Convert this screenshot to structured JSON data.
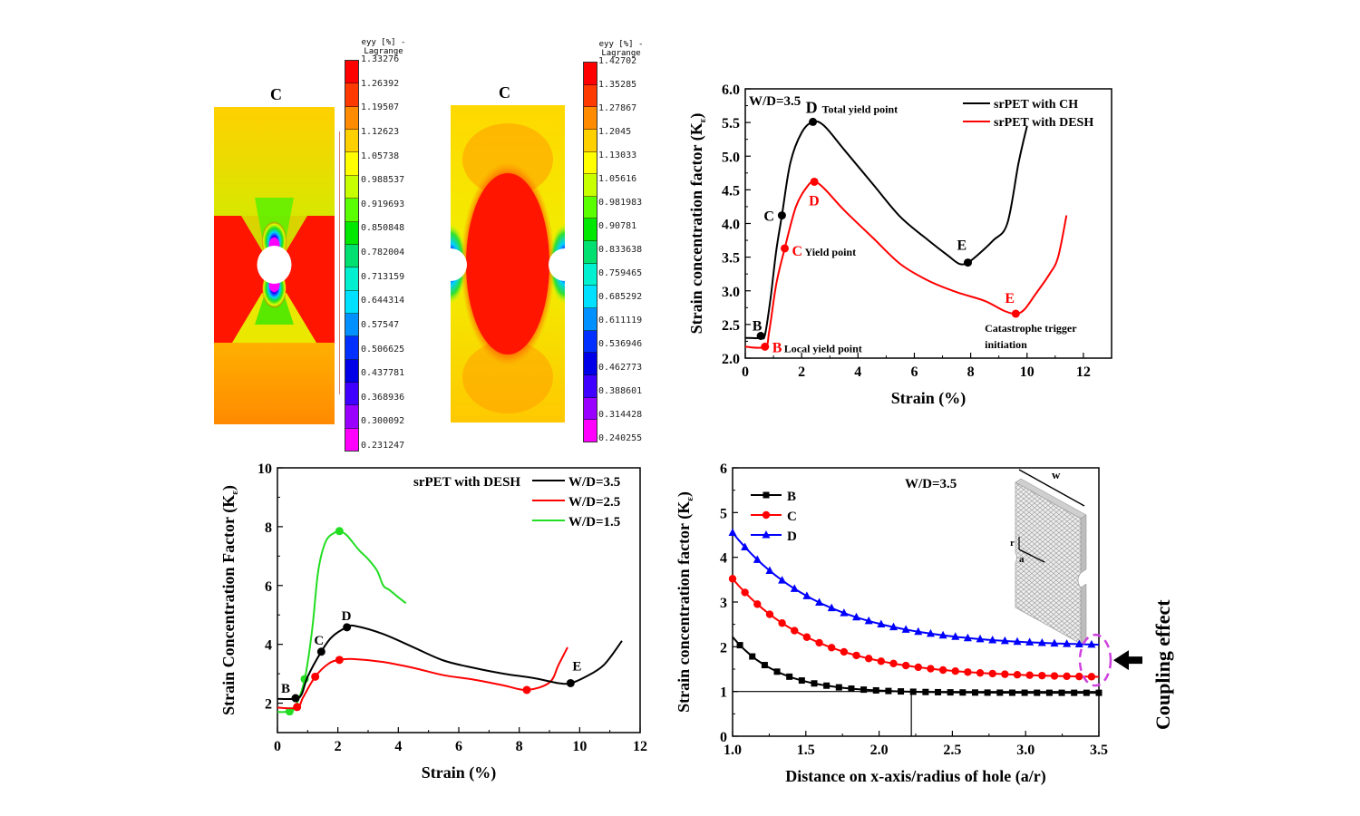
{
  "figure": {
    "contour_maps": [
      {
        "label": "C",
        "colorbar_title_line1": "eyy [%] -",
        "colorbar_title_line2": "Lagrange",
        "colorbar_ticks": [
          "1.33276",
          "1.26392",
          "1.19507",
          "1.12623",
          "1.05738",
          "0.988537",
          "0.919693",
          "0.850848",
          "0.782004",
          "0.713159",
          "0.644314",
          "0.57547",
          "0.506625",
          "0.437781",
          "0.368936",
          "0.300092",
          "0.231247"
        ]
      },
      {
        "label": "C",
        "colorbar_title_line1": "eyy [%] -",
        "colorbar_title_line2": "Lagrange",
        "colorbar_ticks": [
          "1.42702",
          "1.35285",
          "1.27867",
          "1.2045",
          "1.13033",
          "1.05616",
          "0.981983",
          "0.90781",
          "0.833638",
          "0.759465",
          "0.685292",
          "0.611119",
          "0.536946",
          "0.462773",
          "0.388601",
          "0.314428",
          "0.240255"
        ]
      }
    ],
    "colorbar_colors": [
      "#ff0000",
      "#ff3a00",
      "#ff8c00",
      "#ffd000",
      "#ffff00",
      "#c8ff00",
      "#5aff00",
      "#00e800",
      "#00e070",
      "#00f0d0",
      "#00e0ff",
      "#0090ff",
      "#0030ff",
      "#0000e8",
      "#4000ff",
      "#9a00ff",
      "#ff00ff"
    ],
    "coupling_label": "Coupling effect"
  },
  "chart_data": [
    {
      "type": "line",
      "title": "",
      "annotation_wd": "W/D=3.5",
      "xlabel": "Strain (%)",
      "ylabel": "Strain concentration factor (K",
      "ylabel_sub": "ε",
      "xlim": [
        0,
        13
      ],
      "ylim": [
        2.0,
        6.0
      ],
      "xticks": [
        "0",
        "2",
        "4",
        "6",
        "8",
        "10",
        "12"
      ],
      "xtick_values": [
        0,
        2,
        4,
        6,
        8,
        10,
        12
      ],
      "yticks": [
        "2.0",
        "2.5",
        "3.0",
        "3.5",
        "4.0",
        "4.5",
        "5.0",
        "5.5",
        "6.0"
      ],
      "ytick_values": [
        2.0,
        2.5,
        3.0,
        3.5,
        4.0,
        4.5,
        5.0,
        5.5,
        6.0
      ],
      "legend_position": "top-right",
      "series": [
        {
          "name": "srPET with CH",
          "color": "#000000",
          "x": [
            0,
            0.55,
            0.7,
            0.9,
            1.1,
            1.3,
            1.6,
            2.0,
            2.4,
            2.8,
            3.5,
            4.5,
            5.5,
            6.5,
            7.2,
            7.6,
            7.9,
            8.3,
            8.8,
            9.3,
            9.7,
            10.0
          ],
          "y": [
            2.3,
            2.3,
            2.35,
            2.9,
            3.6,
            4.12,
            4.9,
            5.35,
            5.51,
            5.45,
            5.1,
            4.6,
            4.1,
            3.75,
            3.52,
            3.4,
            3.42,
            3.55,
            3.75,
            4.0,
            4.9,
            5.45
          ],
          "points": [
            {
              "label": "B",
              "x": 0.55,
              "y": 2.33,
              "note": ""
            },
            {
              "label": "C",
              "x": 1.3,
              "y": 4.12,
              "note": ""
            },
            {
              "label": "D",
              "x": 2.4,
              "y": 5.51,
              "note": "Total yield point"
            },
            {
              "label": "E",
              "x": 7.9,
              "y": 3.42,
              "note": ""
            }
          ]
        },
        {
          "name": "srPET with DESH",
          "color": "#ff0000",
          "x": [
            0,
            0.7,
            0.85,
            1.1,
            1.4,
            1.8,
            2.2,
            2.45,
            2.8,
            3.5,
            4.5,
            5.5,
            6.5,
            7.5,
            8.5,
            9.2,
            9.6,
            9.9,
            10.3,
            10.8,
            11.1,
            11.4
          ],
          "y": [
            2.17,
            2.17,
            2.4,
            3.1,
            3.63,
            4.25,
            4.55,
            4.62,
            4.52,
            4.2,
            3.8,
            3.4,
            3.15,
            2.98,
            2.85,
            2.7,
            2.66,
            2.72,
            2.95,
            3.25,
            3.5,
            4.12
          ],
          "points": [
            {
              "label": "B",
              "x": 0.7,
              "y": 2.17,
              "note": "Local yield point"
            },
            {
              "label": "C",
              "x": 1.4,
              "y": 3.63,
              "note": "Yield point"
            },
            {
              "label": "D",
              "x": 2.45,
              "y": 4.62,
              "note": ""
            },
            {
              "label": "E",
              "x": 9.6,
              "y": 2.66,
              "note": "Catastrophe trigger initiation"
            }
          ]
        }
      ]
    },
    {
      "type": "line",
      "title": "srPET with DESH",
      "xlabel": "Strain (%)",
      "ylabel": "Strain Concentration Factor (K",
      "ylabel_sub": "ε",
      "xlim": [
        0,
        12
      ],
      "ylim": [
        1,
        10
      ],
      "xticks": [
        "0",
        "2",
        "4",
        "6",
        "8",
        "10",
        "12"
      ],
      "xtick_values": [
        0,
        2,
        4,
        6,
        8,
        10,
        12
      ],
      "yticks": [
        "2",
        "4",
        "6",
        "8",
        "10"
      ],
      "ytick_values": [
        2,
        4,
        6,
        8,
        10
      ],
      "legend_position": "top-right",
      "series": [
        {
          "name": "W/D=3.5",
          "color": "#000000",
          "x": [
            0,
            0.6,
            0.8,
            1.0,
            1.45,
            1.8,
            2.3,
            2.6,
            3.5,
            4.5,
            5.5,
            6.5,
            7.5,
            8.5,
            9.3,
            9.7,
            10.2,
            10.8,
            11.4
          ],
          "y": [
            2.15,
            2.15,
            2.3,
            2.9,
            3.75,
            4.25,
            4.58,
            4.62,
            4.35,
            3.9,
            3.45,
            3.2,
            3.0,
            2.85,
            2.68,
            2.68,
            2.9,
            3.3,
            4.12
          ],
          "points": [
            {
              "label": "B",
              "x": 0.6,
              "y": 2.17
            },
            {
              "label": "C",
              "x": 1.45,
              "y": 3.75
            },
            {
              "label": "D",
              "x": 2.3,
              "y": 4.58
            },
            {
              "label": "E",
              "x": 9.7,
              "y": 2.68
            }
          ]
        },
        {
          "name": "W/D=2.5",
          "color": "#ff0000",
          "x": [
            0,
            0.65,
            0.85,
            1.25,
            1.7,
            2.05,
            2.5,
            3.5,
            4.5,
            5.5,
            6.5,
            7.5,
            8.25,
            9.0,
            9.3,
            9.6
          ],
          "y": [
            1.85,
            1.85,
            2.2,
            2.9,
            3.35,
            3.47,
            3.5,
            3.4,
            3.2,
            2.95,
            2.8,
            2.6,
            2.45,
            2.7,
            3.3,
            3.9
          ],
          "points": [
            {
              "label": "",
              "x": 0.65,
              "y": 1.87
            },
            {
              "label": "",
              "x": 1.25,
              "y": 2.9
            },
            {
              "label": "",
              "x": 2.05,
              "y": 3.47
            },
            {
              "label": "",
              "x": 8.25,
              "y": 2.45
            }
          ]
        },
        {
          "name": "W/D=1.5",
          "color": "#22dd22",
          "x": [
            0,
            0.4,
            0.6,
            0.9,
            1.15,
            1.35,
            1.6,
            1.9,
            2.05,
            2.3,
            2.7,
            3.0,
            3.3,
            3.5,
            3.7,
            4.0,
            4.25
          ],
          "y": [
            1.7,
            1.72,
            1.9,
            2.8,
            4.5,
            6.5,
            7.5,
            7.8,
            7.85,
            7.7,
            7.2,
            6.9,
            6.5,
            6.0,
            5.85,
            5.6,
            5.4
          ],
          "points": [
            {
              "label": "",
              "x": 0.4,
              "y": 1.72
            },
            {
              "label": "",
              "x": 0.9,
              "y": 2.82
            },
            {
              "label": "",
              "x": 2.05,
              "y": 7.85
            }
          ]
        }
      ]
    },
    {
      "type": "line",
      "title": "W/D=3.5",
      "xlabel": "Distance on x-axis/radius of hole (a/r)",
      "ylabel": "Strain concentration factor (K",
      "ylabel_sub": "ε",
      "xlim": [
        1.0,
        3.5
      ],
      "ylim": [
        0,
        6
      ],
      "xticks": [
        "1.0",
        "1.5",
        "2.0",
        "2.5",
        "3.0",
        "3.5"
      ],
      "xtick_values": [
        1.0,
        1.5,
        2.0,
        2.5,
        3.0,
        3.5
      ],
      "yticks": [
        "0",
        "1",
        "2",
        "3",
        "4",
        "5",
        "6"
      ],
      "ytick_values": [
        0,
        1,
        2,
        3,
        4,
        5,
        6
      ],
      "legend_position": "top-left",
      "reference_lines": {
        "hline_y": 1,
        "vline_x": 2.22
      },
      "inset_labels": {
        "width": "w",
        "radius": "r",
        "distance": "a"
      },
      "series": [
        {
          "name": "B",
          "color": "#000000",
          "marker": "square",
          "x_start": 1.0,
          "x_end": 3.5,
          "decay_base": 0.97,
          "decay_amp": 1.25,
          "decay_rate": 3.2,
          "y_at_x1": 2.2,
          "y_at_x3_5": 0.97
        },
        {
          "name": "C",
          "color": "#ff0000",
          "marker": "circle",
          "x_start": 1.0,
          "x_end": 3.5,
          "decay_base": 1.3,
          "decay_amp": 2.22,
          "decay_rate": 1.75,
          "y_at_x1": 3.52,
          "y_at_x3_5": 1.35
        },
        {
          "name": "D",
          "color": "#0000ff",
          "marker": "triangle",
          "x_start": 1.0,
          "x_end": 3.5,
          "decay_base": 2.0,
          "decay_amp": 2.55,
          "decay_rate": 1.6,
          "y_at_x1": 4.55,
          "y_at_x3_5": 2.07
        }
      ]
    }
  ]
}
